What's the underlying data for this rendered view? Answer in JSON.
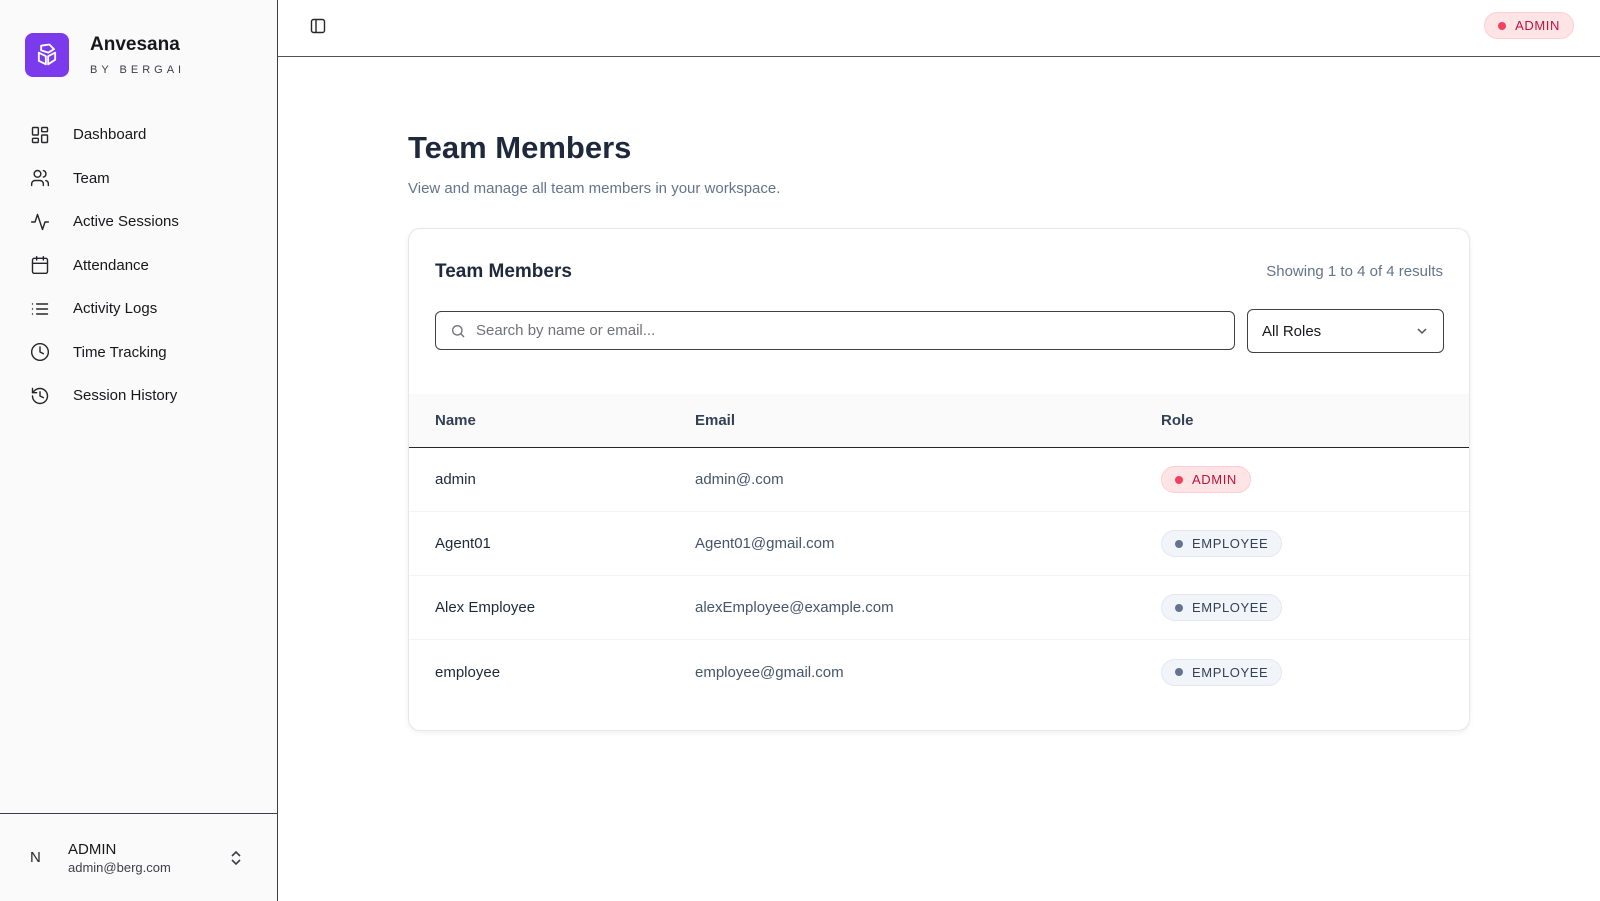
{
  "brand": {
    "name": "Anvesana",
    "sub": "BY BERGAI"
  },
  "sidebar": {
    "items": [
      {
        "label": "Dashboard",
        "icon": "dashboard-icon"
      },
      {
        "label": "Team",
        "icon": "users-icon"
      },
      {
        "label": "Active Sessions",
        "icon": "activity-icon"
      },
      {
        "label": "Attendance",
        "icon": "calendar-icon"
      },
      {
        "label": "Activity Logs",
        "icon": "list-icon"
      },
      {
        "label": "Time Tracking",
        "icon": "clock-icon"
      },
      {
        "label": "Session History",
        "icon": "history-icon"
      }
    ]
  },
  "user": {
    "initial": "N",
    "name": "ADMIN",
    "email": "admin@berg.com"
  },
  "header": {
    "role": "ADMIN"
  },
  "page": {
    "title": "Team Members",
    "subtitle": "View and manage all team members in your workspace."
  },
  "card": {
    "title": "Team Members",
    "count": "Showing 1 to 4 of 4 results",
    "search_placeholder": "Search by name or email...",
    "role_filter": "All Roles",
    "columns": [
      "Name",
      "Email",
      "Role"
    ],
    "rows": [
      {
        "name": "admin",
        "email": "admin@.com",
        "role": "ADMIN"
      },
      {
        "name": "Agent01",
        "email": "Agent01@gmail.com",
        "role": "EMPLOYEE"
      },
      {
        "name": "Alex Employee",
        "email": "alexEmployee@example.com",
        "role": "EMPLOYEE"
      },
      {
        "name": "employee",
        "email": "employee@gmail.com",
        "role": "EMPLOYEE"
      }
    ]
  },
  "colors": {
    "brand": "#7c3aed",
    "admin_badge": "#be123c",
    "employee_badge": "#334155"
  }
}
